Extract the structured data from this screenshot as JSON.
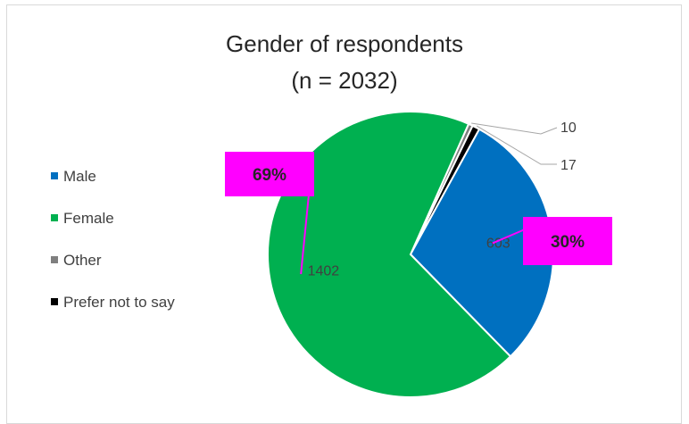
{
  "chart_data": {
    "type": "pie",
    "title": "Gender of respondents",
    "subtitle": "(n = 2032)",
    "categories": [
      "Male",
      "Female",
      "Other",
      "Prefer not to say"
    ],
    "values": [
      603,
      1402,
      10,
      17
    ],
    "colors": [
      "#0070c0",
      "#00b050",
      "#7f7f7f",
      "#000000"
    ],
    "data_labels": [
      "603",
      "1402",
      "10",
      "17"
    ],
    "percent_callouts": [
      {
        "category": "Female",
        "text": "69%"
      },
      {
        "category": "Male",
        "text": "30%"
      }
    ],
    "callout_color": "#ff00ff",
    "legend_position": "left"
  }
}
